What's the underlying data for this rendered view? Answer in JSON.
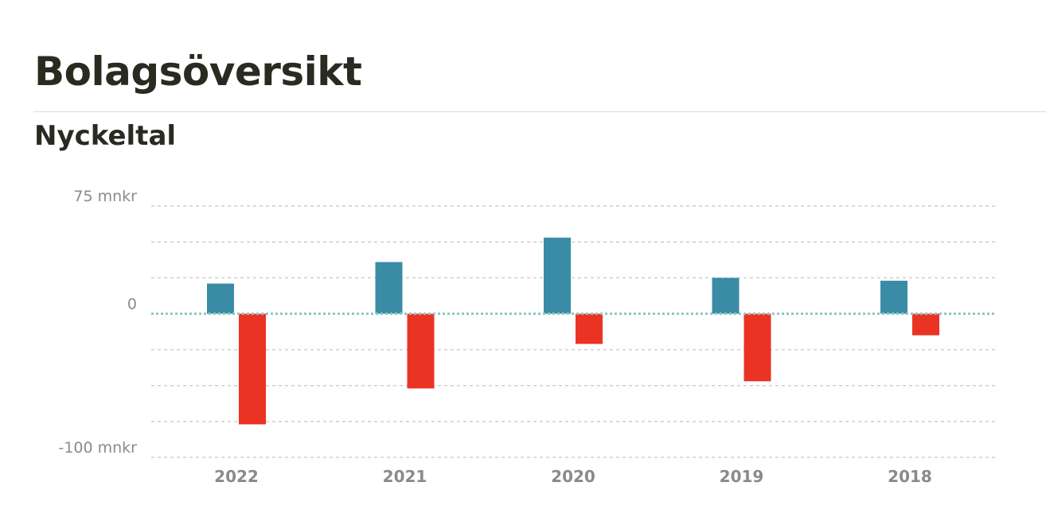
{
  "header": {
    "title": "Bolagsöversikt",
    "section_title": "Nyckeltal"
  },
  "colors": {
    "positive": "#3a8ca6",
    "negative": "#eb3324",
    "grid": "#cfcfcf",
    "zero_line": "#8fc6c6"
  },
  "chart_data": {
    "type": "bar",
    "categories": [
      "2022",
      "2021",
      "2020",
      "2019",
      "2018"
    ],
    "series": [
      {
        "color": "#3a8ca6",
        "values": [
          21,
          36,
          53,
          25,
          23
        ]
      },
      {
        "color": "#eb3324",
        "values": [
          -77,
          -52,
          -21,
          -47,
          -15
        ]
      }
    ],
    "ylim": [
      -100,
      75
    ],
    "yticks": [
      75,
      50,
      25,
      0,
      -25,
      -50,
      -75,
      -100
    ],
    "ytick_labels": [
      {
        "value": 75,
        "label": "75 mnkr"
      },
      {
        "value": 0,
        "label": "0"
      },
      {
        "value": -100,
        "label": "-100 mnkr"
      }
    ],
    "grid": true,
    "legend": false
  }
}
